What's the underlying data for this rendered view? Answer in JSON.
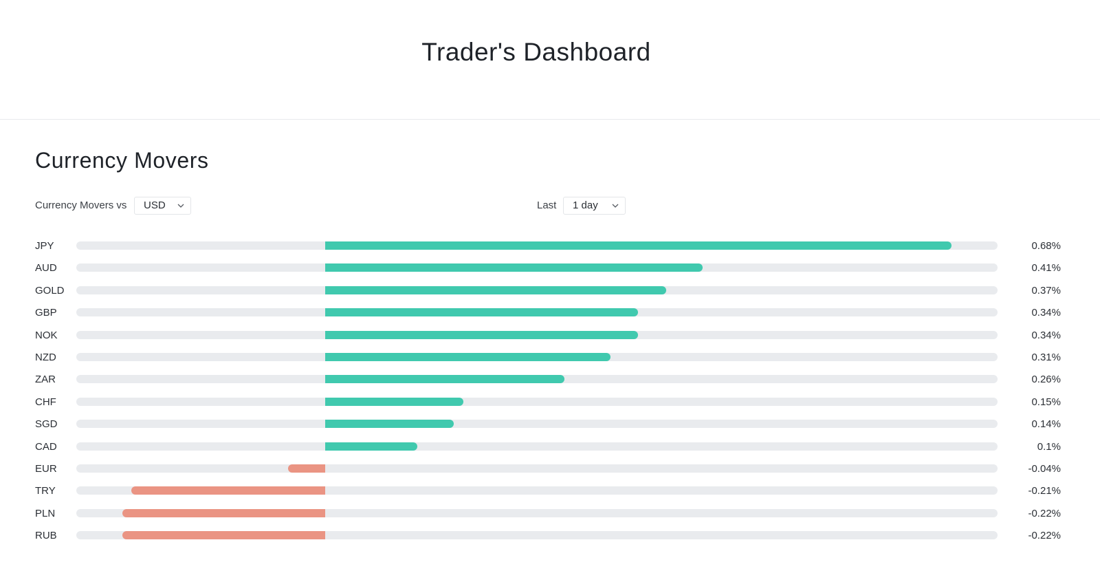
{
  "header": {
    "title": "Trader's Dashboard"
  },
  "section": {
    "title": "Currency Movers"
  },
  "controls": {
    "vs_label": "Currency Movers vs",
    "vs_value": "USD",
    "period_label": "Last",
    "period_value": "1 day"
  },
  "colors": {
    "positive": "#40c9ae",
    "negative": "#ea9483",
    "track": "#e9ebee"
  },
  "chart_data": {
    "type": "bar",
    "orientation": "horizontal",
    "unit": "%",
    "categories": [
      "JPY",
      "AUD",
      "GOLD",
      "GBP",
      "NOK",
      "NZD",
      "ZAR",
      "CHF",
      "SGD",
      "CAD",
      "EUR",
      "TRY",
      "PLN",
      "RUB"
    ],
    "values": [
      0.68,
      0.41,
      0.37,
      0.34,
      0.34,
      0.31,
      0.26,
      0.15,
      0.14,
      0.1,
      -0.04,
      -0.21,
      -0.22,
      -0.22
    ],
    "value_labels": [
      "0.68%",
      "0.41%",
      "0.37%",
      "0.34%",
      "0.34%",
      "0.31%",
      "0.26%",
      "0.15%",
      "0.14%",
      "0.1%",
      "-0.04%",
      "-0.21%",
      "-0.22%",
      "-0.22%"
    ],
    "xlim": [
      -0.27,
      0.73
    ],
    "grid": false,
    "legend": "none"
  }
}
